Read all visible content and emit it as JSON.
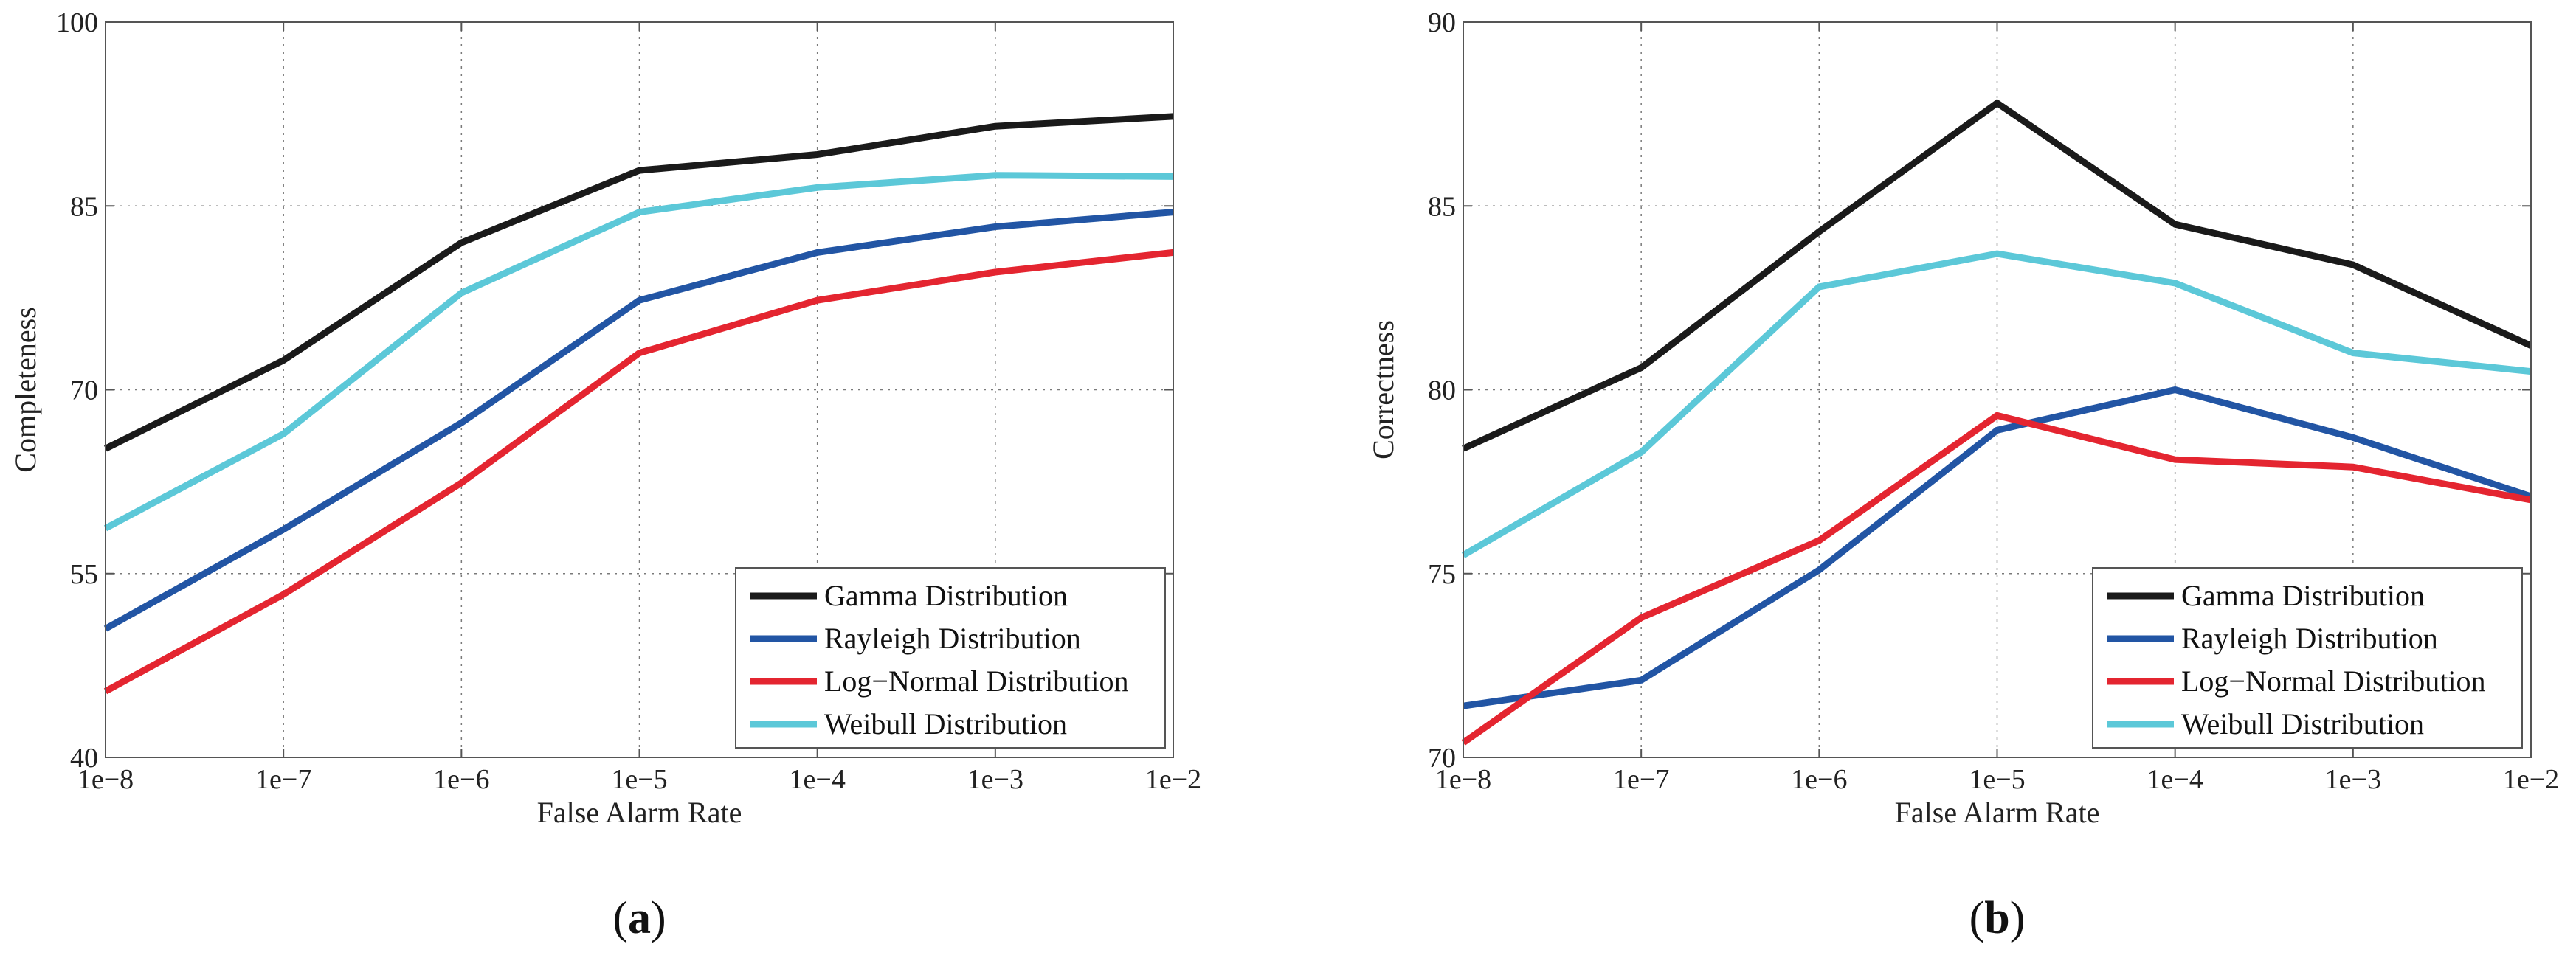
{
  "colors": {
    "gamma": "#1a1a1a",
    "rayleigh": "#2255a4",
    "lognormal": "#e42530",
    "weibull": "#5cc8d8"
  },
  "chart_data": [
    {
      "type": "line",
      "panel_label": "a",
      "categories": [
        "1e−8",
        "1e−7",
        "1e−6",
        "1e−5",
        "1e−4",
        "1e−3",
        "1e−2"
      ],
      "xlabel": "False Alarm Rate",
      "ylabel": "Completeness",
      "ylim": [
        40,
        100
      ],
      "yticks": [
        "40",
        "55",
        "70",
        "85",
        "100"
      ],
      "ytick_values": [
        40,
        55,
        70,
        85,
        100
      ],
      "grid": true,
      "legend_position": "bottom-right",
      "series": [
        {
          "name": "Gamma Distribution",
          "color_key": "gamma",
          "values": [
            65.2,
            72.4,
            82.0,
            87.9,
            89.2,
            91.5,
            92.3
          ]
        },
        {
          "name": "Rayleigh Distribution",
          "color_key": "rayleigh",
          "values": [
            50.5,
            58.6,
            67.3,
            77.3,
            81.2,
            83.3,
            84.5
          ]
        },
        {
          "name": "Log−Normal Distribution",
          "color_key": "lognormal",
          "values": [
            45.4,
            53.3,
            62.4,
            73.0,
            77.3,
            79.6,
            81.2
          ]
        },
        {
          "name": "Weibull Distribution",
          "color_key": "weibull",
          "values": [
            58.7,
            66.4,
            77.9,
            84.5,
            86.5,
            87.5,
            87.4
          ]
        }
      ]
    },
    {
      "type": "line",
      "panel_label": "b",
      "categories": [
        "1e−8",
        "1e−7",
        "1e−6",
        "1e−5",
        "1e−4",
        "1e−3",
        "1e−2"
      ],
      "xlabel": "False Alarm Rate",
      "ylabel": "Correctness",
      "ylim": [
        70,
        90
      ],
      "yticks": [
        "70",
        "75",
        "80",
        "85",
        "90"
      ],
      "ytick_values": [
        70,
        75,
        80,
        85,
        90
      ],
      "grid": true,
      "legend_position": "bottom-right",
      "series": [
        {
          "name": "Gamma Distribution",
          "color_key": "gamma",
          "values": [
            78.4,
            80.6,
            84.3,
            87.8,
            84.5,
            83.4,
            81.2
          ]
        },
        {
          "name": "Rayleigh Distribution",
          "color_key": "rayleigh",
          "values": [
            71.4,
            72.1,
            75.1,
            78.9,
            80.0,
            78.7,
            77.1
          ]
        },
        {
          "name": "Log−Normal Distribution",
          "color_key": "lognormal",
          "values": [
            70.4,
            73.8,
            75.9,
            79.3,
            78.1,
            77.9,
            77.0
          ]
        },
        {
          "name": "Weibull Distribution",
          "color_key": "weibull",
          "values": [
            75.5,
            78.3,
            82.8,
            83.7,
            82.9,
            81.0,
            80.5
          ]
        }
      ]
    }
  ]
}
